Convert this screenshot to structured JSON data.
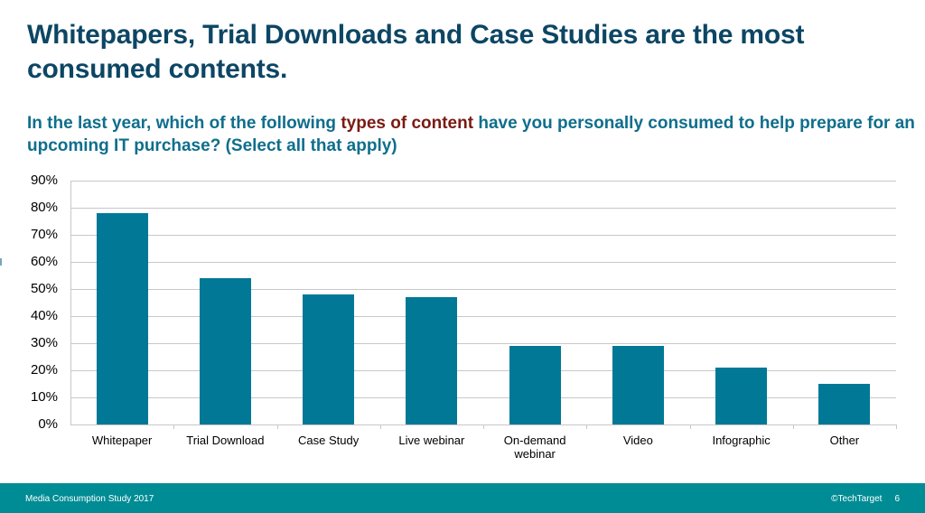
{
  "slide": {
    "title": "Whitepapers, Trial Downloads and Case Studies are the most consumed contents.",
    "subtitle_pre": "In the last year, which of the following ",
    "subtitle_highlight": "types of content",
    "subtitle_post": " have you personally consumed to help prepare for an upcoming IT purchase? (Select all that apply)",
    "highlight_color": "#7a1a12"
  },
  "footer": {
    "left": "Media Consumption Study 2017",
    "right": "©TechTarget",
    "page": "6",
    "bg_color": "#008c94"
  },
  "chart_data": {
    "type": "bar",
    "title": "",
    "xlabel": "",
    "ylabel": "",
    "categories": [
      "Whitepaper",
      "Trial Download",
      "Case Study",
      "Live webinar",
      "On-demand webinar",
      "Video",
      "Infographic",
      "Other"
    ],
    "values": [
      78,
      54,
      48,
      47,
      29,
      29,
      21,
      15
    ],
    "unit": "%",
    "ylim": [
      0,
      90
    ],
    "yticks": [
      "0%",
      "10%",
      "20%",
      "30%",
      "40%",
      "50%",
      "60%",
      "70%",
      "80%",
      "90%"
    ],
    "grid": true,
    "legend": "none",
    "bar_color": "#007896"
  }
}
